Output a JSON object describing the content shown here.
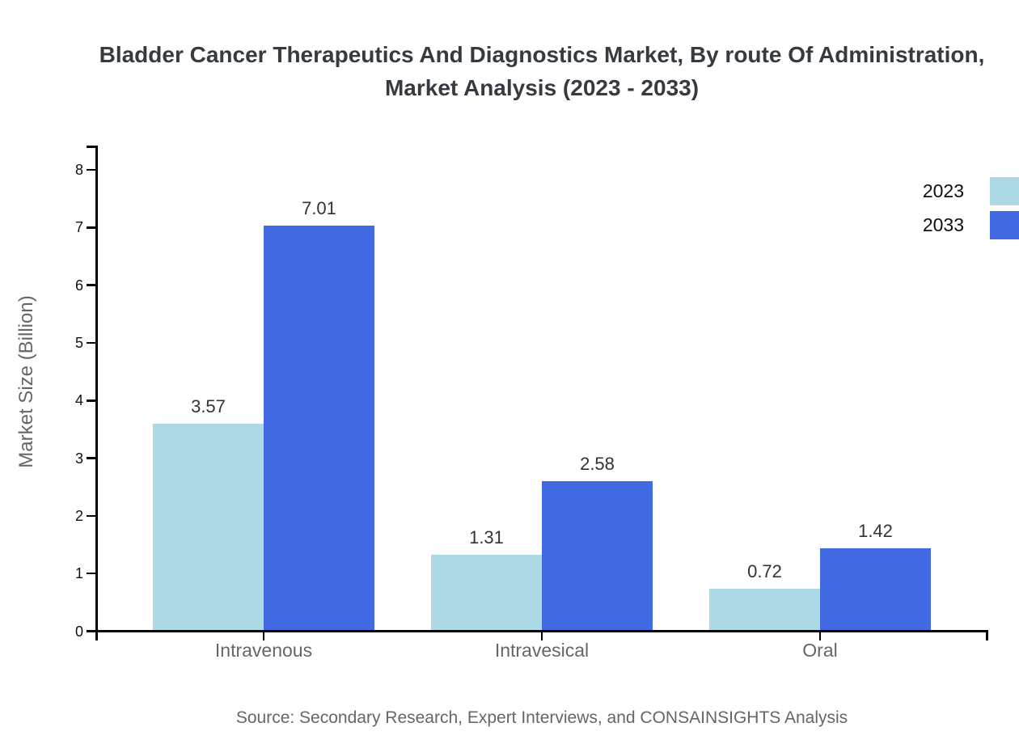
{
  "title": {
    "line1": "Bladder Cancer Therapeutics And Diagnostics Market, By route Of Administration,",
    "line2": "Market Analysis (2023 - 2033)"
  },
  "source_note": "Source: Secondary Research, Expert Interviews, and CONSAINSIGHTS Analysis",
  "colors": {
    "series_2023": "#ADD8E6",
    "series_2033": "#4169E1",
    "axis": "#000000",
    "title_text": "#363b42",
    "muted_text": "#666666",
    "tick_text": "#111111",
    "value_text": "#333333",
    "background": "#ffffff"
  },
  "chart_data": {
    "type": "bar",
    "title": "Bladder Cancer Therapeutics And Diagnostics Market, By route Of Administration, Market Analysis (2023 - 2033)",
    "categories": [
      "Intravenous",
      "Intravesical",
      "Oral"
    ],
    "series": [
      {
        "name": "2023",
        "color": "#ADD8E6",
        "values": [
          3.57,
          1.31,
          0.72
        ]
      },
      {
        "name": "2033",
        "color": "#4169E1",
        "values": [
          7.01,
          2.58,
          1.42
        ]
      }
    ],
    "value_labels": [
      "3.57",
      "7.01",
      "1.31",
      "2.58",
      "0.72",
      "1.42"
    ],
    "xlabel": "",
    "ylabel": "Market Size (Billion)",
    "ylim": [
      0,
      8
    ],
    "yticks": [
      0,
      1,
      2,
      3,
      4,
      5,
      6,
      7,
      8
    ],
    "grid": false,
    "legend_position": "top-right",
    "legend_entries": [
      "2023",
      "2033"
    ]
  }
}
